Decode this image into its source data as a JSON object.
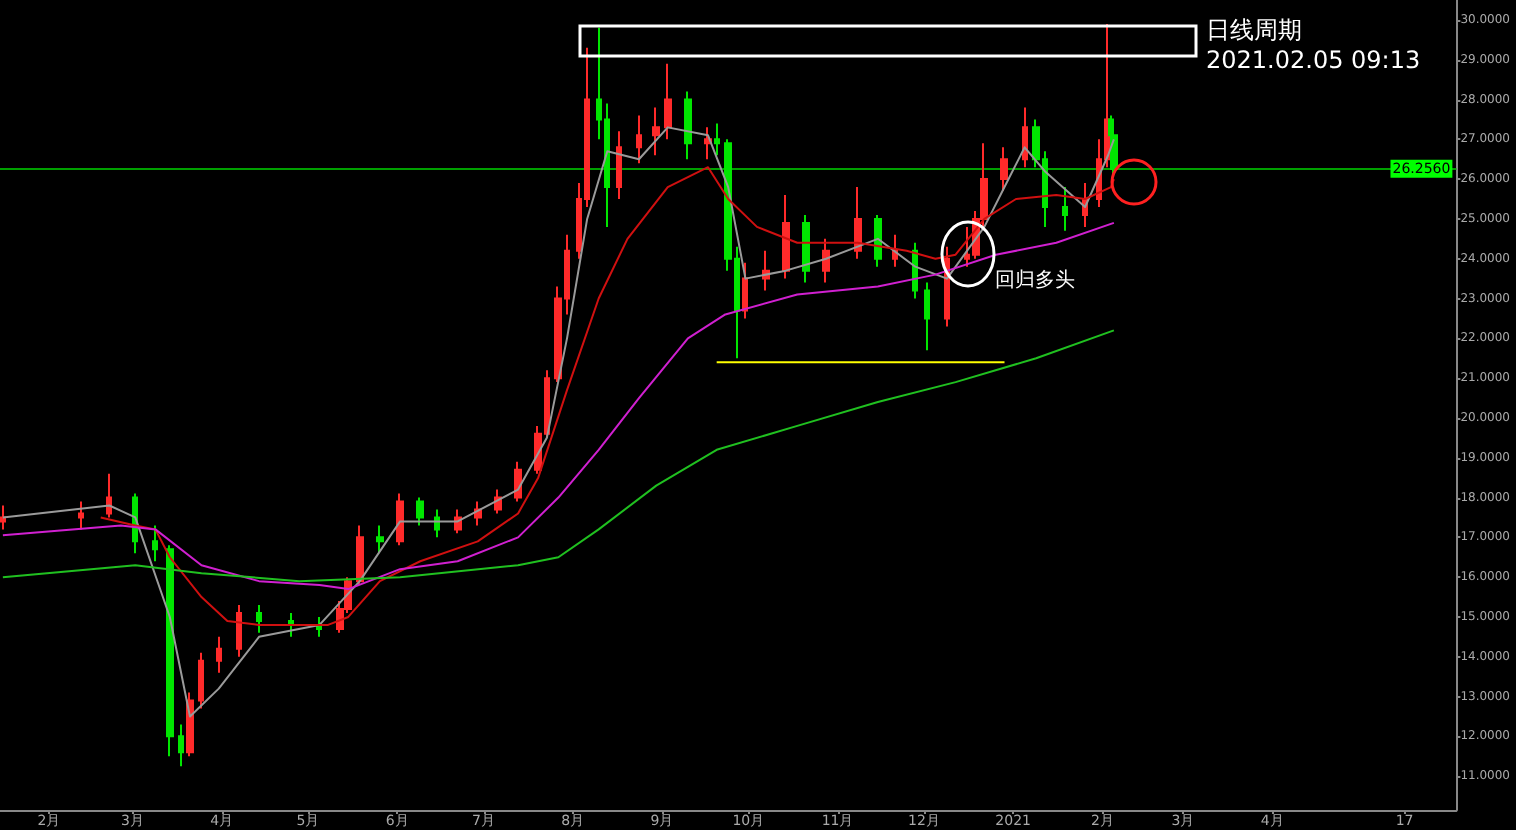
{
  "chart_data": {
    "type": "candlestick",
    "title": "日线周期",
    "subtitle": "2021.02.05 09:13",
    "x": [
      "2020-01-16",
      "2020-02-12",
      "2020-02-22",
      "2020-03-02",
      "2020-03-09",
      "2020-03-14",
      "2020-03-18",
      "2020-03-21",
      "2020-03-25",
      "2020-03-31",
      "2020-04-07",
      "2020-04-14",
      "2020-04-25",
      "2020-05-05",
      "2020-05-12",
      "2020-05-15",
      "2020-05-19",
      "2020-05-26",
      "2020-06-02",
      "2020-06-09",
      "2020-06-15",
      "2020-06-22",
      "2020-06-29",
      "2020-07-06",
      "2020-07-13",
      "2020-07-20",
      "2020-07-23",
      "2020-07-27",
      "2020-07-30",
      "2020-08-03",
      "2020-08-06",
      "2020-08-10",
      "2020-08-13",
      "2020-08-17",
      "2020-08-24",
      "2020-08-30",
      "2020-09-03",
      "2020-09-10",
      "2020-09-17",
      "2020-09-20",
      "2020-09-24",
      "2020-09-27",
      "2020-09-30",
      "2020-10-07",
      "2020-10-14",
      "2020-10-21",
      "2020-10-28",
      "2020-11-08",
      "2020-11-15",
      "2020-11-21",
      "2020-11-28",
      "2020-12-02",
      "2020-12-09",
      "2020-12-16",
      "2020-12-19",
      "2020-12-22",
      "2020-12-29",
      "2021-01-05",
      "2021-01-09",
      "2021-01-12",
      "2021-01-19",
      "2021-01-26",
      "2021-01-31",
      "2021-02-03",
      "2021-02-04",
      "2021-02-05"
    ],
    "ohlc": [
      [
        17.4,
        17.8,
        17.2,
        17.5
      ],
      [
        17.5,
        17.9,
        17.2,
        17.6
      ],
      [
        17.6,
        18.6,
        17.5,
        18.0
      ],
      [
        18.0,
        18.1,
        16.6,
        16.9
      ],
      [
        16.9,
        17.3,
        16.4,
        16.7
      ],
      [
        16.7,
        16.8,
        11.5,
        12.0
      ],
      [
        12.0,
        12.3,
        11.25,
        11.6
      ],
      [
        11.6,
        13.1,
        11.5,
        12.9
      ],
      [
        12.9,
        14.1,
        12.7,
        13.9
      ],
      [
        13.9,
        14.5,
        13.6,
        14.2
      ],
      [
        14.2,
        15.3,
        14.0,
        15.1
      ],
      [
        15.1,
        15.3,
        14.6,
        14.9
      ],
      [
        14.9,
        15.1,
        14.5,
        14.8
      ],
      [
        14.8,
        15.0,
        14.5,
        14.7
      ],
      [
        14.7,
        15.4,
        14.6,
        15.2
      ],
      [
        15.2,
        16.0,
        15.1,
        15.9
      ],
      [
        15.9,
        17.3,
        15.8,
        17.0
      ],
      [
        17.0,
        17.3,
        16.6,
        16.9
      ],
      [
        16.9,
        18.1,
        16.8,
        17.9
      ],
      [
        17.9,
        18.0,
        17.3,
        17.5
      ],
      [
        17.5,
        17.7,
        17.0,
        17.2
      ],
      [
        17.2,
        17.7,
        17.1,
        17.5
      ],
      [
        17.5,
        17.9,
        17.3,
        17.7
      ],
      [
        17.7,
        18.2,
        17.6,
        18.0
      ],
      [
        18.0,
        18.9,
        17.9,
        18.7
      ],
      [
        18.7,
        19.8,
        18.6,
        19.6
      ],
      [
        19.6,
        21.2,
        19.5,
        21.0
      ],
      [
        21.0,
        23.3,
        20.9,
        23.0
      ],
      [
        23.0,
        24.6,
        22.6,
        24.2
      ],
      [
        24.2,
        25.9,
        24.0,
        25.5
      ],
      [
        25.5,
        29.3,
        25.3,
        28.0
      ],
      [
        28.0,
        29.8,
        27.0,
        27.5
      ],
      [
        27.5,
        27.9,
        24.8,
        25.8
      ],
      [
        25.8,
        27.2,
        25.5,
        26.8
      ],
      [
        26.8,
        27.6,
        26.4,
        27.1
      ],
      [
        27.1,
        27.8,
        26.6,
        27.3
      ],
      [
        27.3,
        28.9,
        27.0,
        28.0
      ],
      [
        28.0,
        28.2,
        26.5,
        26.9
      ],
      [
        26.9,
        27.3,
        26.5,
        27.0
      ],
      [
        27.0,
        27.4,
        26.6,
        26.9
      ],
      [
        26.9,
        27.0,
        23.7,
        24.0
      ],
      [
        24.0,
        24.3,
        21.5,
        22.7
      ],
      [
        22.7,
        23.9,
        22.5,
        23.5
      ],
      [
        23.5,
        24.2,
        23.2,
        23.7
      ],
      [
        23.7,
        25.6,
        23.5,
        24.9
      ],
      [
        24.9,
        25.1,
        23.4,
        23.7
      ],
      [
        23.7,
        24.5,
        23.4,
        24.2
      ],
      [
        24.2,
        25.8,
        24.0,
        25.0
      ],
      [
        25.0,
        25.1,
        23.8,
        24.0
      ],
      [
        24.0,
        24.6,
        23.8,
        24.2
      ],
      [
        24.2,
        24.4,
        23.0,
        23.2
      ],
      [
        23.2,
        23.4,
        21.7,
        22.5
      ],
      [
        22.5,
        24.3,
        22.3,
        24.0
      ],
      [
        24.0,
        24.8,
        23.8,
        24.1
      ],
      [
        24.1,
        25.2,
        24.0,
        25.0
      ],
      [
        25.0,
        26.9,
        24.8,
        26.0
      ],
      [
        26.0,
        26.8,
        25.7,
        26.5
      ],
      [
        26.5,
        27.8,
        26.3,
        27.3
      ],
      [
        27.3,
        27.5,
        26.3,
        26.5
      ],
      [
        26.5,
        26.7,
        24.8,
        25.3
      ],
      [
        25.3,
        25.8,
        24.7,
        25.1
      ],
      [
        25.1,
        25.9,
        24.8,
        25.5
      ],
      [
        25.5,
        27.0,
        25.3,
        26.5
      ],
      [
        26.5,
        29.9,
        26.3,
        27.5
      ],
      [
        27.5,
        27.6,
        26.8,
        27.1
      ],
      [
        27.1,
        27.3,
        26.1,
        26.256
      ]
    ],
    "colors": [
      "#ff2a2a",
      "#ff2a2a",
      "#ff2a2a",
      "#00e600",
      "#00e600",
      "#00e600",
      "#00e600",
      "#ff2a2a",
      "#ff2a2a",
      "#ff2a2a",
      "#ff2a2a",
      "#00e600",
      "#00e600",
      "#00e600",
      "#ff2a2a",
      "#ff2a2a",
      "#ff2a2a",
      "#00e600",
      "#ff2a2a",
      "#00e600",
      "#00e600",
      "#ff2a2a",
      "#ff2a2a",
      "#ff2a2a",
      "#ff2a2a",
      "#ff2a2a",
      "#ff2a2a",
      "#ff2a2a",
      "#ff2a2a",
      "#ff2a2a",
      "#ff2a2a",
      "#00e600",
      "#00e600",
      "#ff2a2a",
      "#ff2a2a",
      "#ff2a2a",
      "#ff2a2a",
      "#00e600",
      "#ff2a2a",
      "#00e600",
      "#00e600",
      "#00e600",
      "#ff2a2a",
      "#ff2a2a",
      "#ff2a2a",
      "#00e600",
      "#ff2a2a",
      "#ff2a2a",
      "#00e600",
      "#ff2a2a",
      "#00e600",
      "#00e600",
      "#ff2a2a",
      "#ff2a2a",
      "#ff2a2a",
      "#ff2a2a",
      "#ff2a2a",
      "#ff2a2a",
      "#00e600",
      "#00e600",
      "#00e600",
      "#ff2a2a",
      "#ff2a2a",
      "#ff2a2a",
      "#00e600",
      "#00e600"
    ],
    "series": [
      {
        "type": "line",
        "color": "#9a9a9a",
        "x": [
          "2020-01-16",
          "2020-02-22",
          "2020-03-02",
          "2020-03-14",
          "2020-03-21",
          "2020-03-31",
          "2020-04-14",
          "2020-05-05",
          "2020-05-19",
          "2020-06-02",
          "2020-06-22",
          "2020-07-13",
          "2020-07-23",
          "2020-07-30",
          "2020-08-06",
          "2020-08-13",
          "2020-08-24",
          "2020-09-03",
          "2020-09-17",
          "2020-09-24",
          "2020-09-30",
          "2020-10-14",
          "2020-10-28",
          "2020-11-15",
          "2020-11-28",
          "2020-12-09",
          "2020-12-22",
          "2020-12-29",
          "2021-01-05",
          "2021-01-12",
          "2021-01-26",
          "2021-02-03",
          "2021-02-05"
        ],
        "values": [
          17.5,
          17.8,
          17.5,
          15.0,
          12.5,
          13.2,
          14.5,
          14.8,
          15.9,
          17.4,
          17.4,
          18.2,
          19.5,
          22.0,
          25.0,
          26.7,
          26.5,
          27.3,
          27.1,
          25.8,
          23.5,
          23.7,
          24.0,
          24.5,
          23.8,
          23.5,
          24.8,
          25.8,
          26.8,
          26.2,
          25.3,
          26.6,
          27.0
        ]
      },
      {
        "type": "line",
        "color": "#d01010",
        "x": [
          "2020-02-19",
          "2020-03-02",
          "2020-03-09",
          "2020-03-14",
          "2020-03-25",
          "2020-04-03",
          "2020-04-14",
          "2020-05-08",
          "2020-05-15",
          "2020-05-26",
          "2020-06-09",
          "2020-06-29",
          "2020-07-13",
          "2020-07-20",
          "2020-07-30",
          "2020-08-10",
          "2020-08-20",
          "2020-09-03",
          "2020-09-17",
          "2020-09-24",
          "2020-10-04",
          "2020-10-18",
          "2020-11-08",
          "2020-11-25",
          "2020-12-05",
          "2020-12-12",
          "2020-12-22",
          "2021-01-02",
          "2021-01-16",
          "2021-01-26",
          "2021-02-04",
          "2021-02-05"
        ],
        "values": [
          17.5,
          17.3,
          17.2,
          16.5,
          15.5,
          14.9,
          14.8,
          14.8,
          15.0,
          15.9,
          16.4,
          16.9,
          17.6,
          18.5,
          20.7,
          23.0,
          24.5,
          25.8,
          26.3,
          25.5,
          24.8,
          24.4,
          24.4,
          24.2,
          24.0,
          24.1,
          25.0,
          25.5,
          25.6,
          25.5,
          25.8,
          26.0
        ]
      },
      {
        "type": "line",
        "color": "#d020d0",
        "x": [
          "2020-01-16",
          "2020-02-26",
          "2020-03-09",
          "2020-03-25",
          "2020-04-14",
          "2020-05-05",
          "2020-05-15",
          "2020-06-02",
          "2020-06-22",
          "2020-07-13",
          "2020-07-27",
          "2020-08-10",
          "2020-08-24",
          "2020-09-10",
          "2020-09-23",
          "2020-10-18",
          "2020-11-15",
          "2020-12-05",
          "2020-12-26",
          "2021-01-16",
          "2021-02-05"
        ],
        "values": [
          17.05,
          17.3,
          17.2,
          16.3,
          15.9,
          15.8,
          15.7,
          16.2,
          16.4,
          17.0,
          18.0,
          19.2,
          20.5,
          22.0,
          22.6,
          23.1,
          23.3,
          23.6,
          24.1,
          24.4,
          24.9
        ]
      },
      {
        "type": "line",
        "color": "#20c020",
        "x": [
          "2020-01-16",
          "2020-03-02",
          "2020-03-25",
          "2020-04-28",
          "2020-06-02",
          "2020-07-13",
          "2020-07-27",
          "2020-08-10",
          "2020-08-30",
          "2020-09-20",
          "2020-10-18",
          "2020-11-15",
          "2020-12-12",
          "2021-01-09",
          "2021-02-05"
        ],
        "values": [
          16.0,
          16.3,
          16.1,
          15.9,
          16.0,
          16.3,
          16.5,
          17.2,
          18.3,
          19.2,
          19.8,
          20.4,
          20.9,
          21.5,
          22.2
        ]
      },
      {
        "type": "line",
        "color": "#ffff00",
        "x": [
          "2020-09-20",
          "2020-12-29"
        ],
        "values": [
          21.4,
          21.4
        ]
      }
    ],
    "marker": "none",
    "xlim": [
      "2020-01-15",
      "2021-06-04"
    ],
    "xticks": [
      {
        "value": "2020-02-01",
        "label": "2月"
      },
      {
        "value": "2020-03-01",
        "label": "3月"
      },
      {
        "value": "2020-04-01",
        "label": "4月"
      },
      {
        "value": "2020-05-01",
        "label": "5月"
      },
      {
        "value": "2020-06-01",
        "label": "6月"
      },
      {
        "value": "2020-07-01",
        "label": "7月"
      },
      {
        "value": "2020-08-01",
        "label": "8月"
      },
      {
        "value": "2020-09-01",
        "label": "9月"
      },
      {
        "value": "2020-10-01",
        "label": "10月"
      },
      {
        "value": "2020-11-01",
        "label": "11月"
      },
      {
        "value": "2020-12-01",
        "label": "12月"
      },
      {
        "value": "2021-01-01",
        "label": "2021"
      },
      {
        "value": "2021-02-01",
        "label": "2月"
      },
      {
        "value": "2021-03-01",
        "label": "3月"
      },
      {
        "value": "2021-04-01",
        "label": "4月"
      },
      {
        "value": "2021-05-17",
        "label": "17"
      }
    ],
    "ylim": [
      10.15,
      30.5
    ],
    "yticks": [
      {
        "value": 11,
        "label": "11.0000"
      },
      {
        "value": 12,
        "label": "12.0000"
      },
      {
        "value": 13,
        "label": "13.0000"
      },
      {
        "value": 14,
        "label": "14.0000"
      },
      {
        "value": 15,
        "label": "15.0000"
      },
      {
        "value": 16,
        "label": "16.0000"
      },
      {
        "value": 17,
        "label": "17.0000"
      },
      {
        "value": 18,
        "label": "18.0000"
      },
      {
        "value": 19,
        "label": "19.0000"
      },
      {
        "value": 20,
        "label": "20.0000"
      },
      {
        "value": 21,
        "label": "21.0000"
      },
      {
        "value": 22,
        "label": "22.0000"
      },
      {
        "value": 23,
        "label": "23.0000"
      },
      {
        "value": 24,
        "label": "24.0000"
      },
      {
        "value": 25,
        "label": "25.0000"
      },
      {
        "value": 26,
        "label": "26.0000"
      },
      {
        "value": 27,
        "label": "27.0000"
      },
      {
        "value": 28,
        "label": "28.0000"
      },
      {
        "value": 29,
        "label": "29.0000"
      },
      {
        "value": 30,
        "label": "30.0000"
      }
    ],
    "ref_lines": [
      {
        "axis": "y",
        "value": 26.256,
        "label": "26.2560",
        "color": "#00a000"
      }
    ],
    "annotations": [
      {
        "text": "回归多头",
        "x": "2020-12-16",
        "y": 24.1
      }
    ]
  }
}
